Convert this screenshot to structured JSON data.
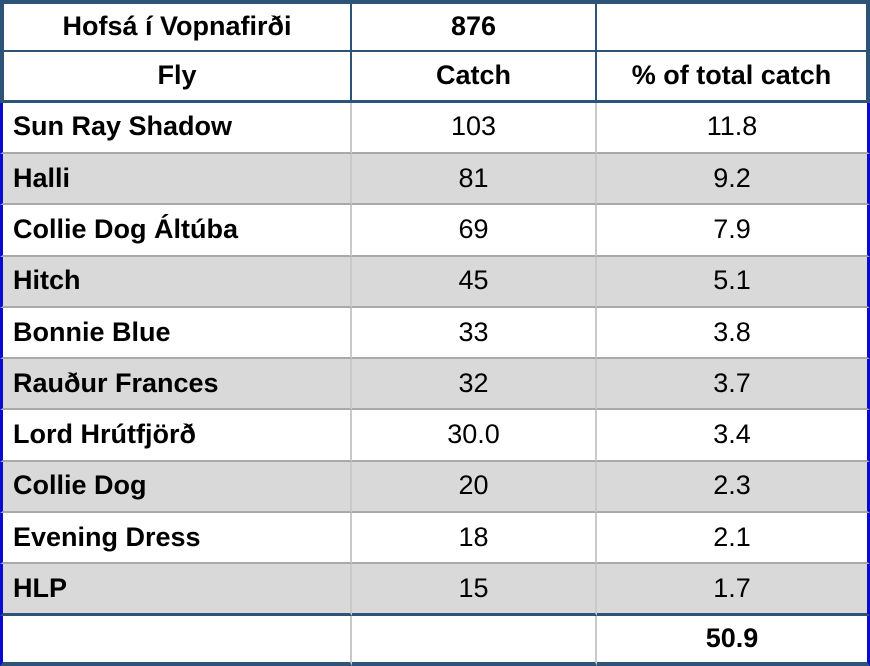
{
  "chart_data": {
    "type": "table",
    "title": "Hofsá í Vopnafirði",
    "title_total_catch": "876",
    "columns": [
      "Fly",
      "Catch",
      "% of total catch"
    ],
    "rows": [
      [
        "Sun Ray Shadow",
        "103",
        "11.8"
      ],
      [
        "Halli",
        "81",
        "9.2"
      ],
      [
        "Collie Dog Áltúba",
        "69",
        "7.9"
      ],
      [
        "Hitch",
        "45",
        "5.1"
      ],
      [
        "Bonnie Blue",
        "33",
        "3.8"
      ],
      [
        "Rauður Frances",
        "32",
        "3.7"
      ],
      [
        "Lord Hrútfjörð",
        "30.0",
        "3.4"
      ],
      [
        "Collie Dog",
        "20",
        "2.3"
      ],
      [
        "Evening Dress",
        "18",
        "2.1"
      ],
      [
        "HLP",
        "15",
        "1.7"
      ]
    ],
    "footer_total_pct": "50.9",
    "layout": {
      "shaded_rows": "every second data row (Halli, Hitch, Rauður Frances, Collie Dog, HLP)",
      "alignment": "fly names left, numbers centered"
    }
  },
  "colors": {
    "header_border_navy": "#2e5379",
    "body_side_border_blue": "#0a0ad2",
    "row_shade_gray": "#d9d9d9",
    "row_separator_gray": "#a9a9a9",
    "column_divider_gray": "#c9c9c9",
    "text": "#000000",
    "background": "#ffffff"
  }
}
